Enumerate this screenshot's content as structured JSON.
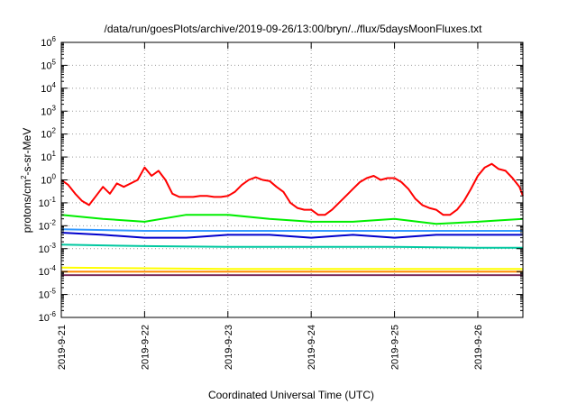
{
  "chart_data": {
    "type": "line",
    "title": "/data/run/goesPlots/archive/2019-09-26/13:00/bryn/../flux/5daysMoonFluxes.txt",
    "xlabel": "Coordinated Universal Time (UTC)",
    "ylabel": {
      "prefix": "protons/cm",
      "superscript": "2",
      "suffix": "-s-sr-MeV"
    },
    "y_scale": "log",
    "ylim": [
      1e-06,
      1000000.0
    ],
    "y_ticks": [
      {
        "value": 1e-06,
        "base": "10",
        "exp": "-6"
      },
      {
        "value": 1e-05,
        "base": "10",
        "exp": "-5"
      },
      {
        "value": 0.0001,
        "base": "10",
        "exp": "-4"
      },
      {
        "value": 0.001,
        "base": "10",
        "exp": "-3"
      },
      {
        "value": 0.01,
        "base": "10",
        "exp": "-2"
      },
      {
        "value": 0.1,
        "base": "10",
        "exp": "-1"
      },
      {
        "value": 1.0,
        "base": "10",
        "exp": "0"
      },
      {
        "value": 10.0,
        "base": "10",
        "exp": "1"
      },
      {
        "value": 100.0,
        "base": "10",
        "exp": "2"
      },
      {
        "value": 1000.0,
        "base": "10",
        "exp": "3"
      },
      {
        "value": 10000.0,
        "base": "10",
        "exp": "4"
      },
      {
        "value": 100000.0,
        "base": "10",
        "exp": "5"
      },
      {
        "value": 1000000.0,
        "base": "10",
        "exp": "6"
      }
    ],
    "x_ticks": [
      "2019-9-21",
      "2019-9-22",
      "2019-9-23",
      "2019-9-24",
      "2019-9-25",
      "2019-9-26"
    ],
    "xlim": [
      "2019-09-21T00:00",
      "2019-09-26T13:00"
    ],
    "grid": true,
    "legend": "none",
    "series": [
      {
        "color": "#ff0000",
        "x": [
          "2019-09-21T00:00",
          "2019-09-21T02:00",
          "2019-09-21T04:00",
          "2019-09-21T06:00",
          "2019-09-21T08:00",
          "2019-09-21T10:00",
          "2019-09-21T12:00",
          "2019-09-21T14:00",
          "2019-09-21T16:00",
          "2019-09-21T18:00",
          "2019-09-21T20:00",
          "2019-09-21T22:00",
          "2019-09-22T00:00",
          "2019-09-22T02:00",
          "2019-09-22T04:00",
          "2019-09-22T06:00",
          "2019-09-22T08:00",
          "2019-09-22T10:00",
          "2019-09-22T12:00",
          "2019-09-22T14:00",
          "2019-09-22T16:00",
          "2019-09-22T18:00",
          "2019-09-22T20:00",
          "2019-09-22T22:00",
          "2019-09-23T00:00",
          "2019-09-23T02:00",
          "2019-09-23T04:00",
          "2019-09-23T06:00",
          "2019-09-23T08:00",
          "2019-09-23T10:00",
          "2019-09-23T12:00",
          "2019-09-23T14:00",
          "2019-09-23T16:00",
          "2019-09-23T18:00",
          "2019-09-23T20:00",
          "2019-09-23T22:00",
          "2019-09-24T00:00",
          "2019-09-24T02:00",
          "2019-09-24T04:00",
          "2019-09-24T06:00",
          "2019-09-24T08:00",
          "2019-09-24T10:00",
          "2019-09-24T12:00",
          "2019-09-24T14:00",
          "2019-09-24T16:00",
          "2019-09-24T18:00",
          "2019-09-24T20:00",
          "2019-09-24T22:00",
          "2019-09-25T00:00",
          "2019-09-25T02:00",
          "2019-09-25T04:00",
          "2019-09-25T06:00",
          "2019-09-25T08:00",
          "2019-09-25T10:00",
          "2019-09-25T12:00",
          "2019-09-25T14:00",
          "2019-09-25T16:00",
          "2019-09-25T18:00",
          "2019-09-25T20:00",
          "2019-09-25T22:00",
          "2019-09-26T00:00",
          "2019-09-26T02:00",
          "2019-09-26T04:00",
          "2019-09-26T06:00",
          "2019-09-26T08:00",
          "2019-09-26T10:00",
          "2019-09-26T12:00",
          "2019-09-26T13:00"
        ],
        "values": [
          1.0,
          0.6,
          0.25,
          0.12,
          0.08,
          0.2,
          0.5,
          0.25,
          0.7,
          0.5,
          0.7,
          1.0,
          3.5,
          1.5,
          2.5,
          1.0,
          0.25,
          0.18,
          0.18,
          0.18,
          0.2,
          0.2,
          0.18,
          0.18,
          0.2,
          0.3,
          0.6,
          1.0,
          1.3,
          1.0,
          0.9,
          0.5,
          0.3,
          0.1,
          0.06,
          0.05,
          0.05,
          0.03,
          0.03,
          0.05,
          0.1,
          0.2,
          0.4,
          0.8,
          1.2,
          1.5,
          1.0,
          1.2,
          1.2,
          0.8,
          0.4,
          0.15,
          0.08,
          0.06,
          0.05,
          0.03,
          0.03,
          0.05,
          0.12,
          0.4,
          1.5,
          3.5,
          5.0,
          3.0,
          2.5,
          1.2,
          0.5,
          0.2
        ]
      },
      {
        "color": "#00ee00",
        "x": [
          "2019-09-21T00:00",
          "2019-09-21T12:00",
          "2019-09-22T00:00",
          "2019-09-22T12:00",
          "2019-09-23T00:00",
          "2019-09-23T12:00",
          "2019-09-24T00:00",
          "2019-09-24T12:00",
          "2019-09-25T00:00",
          "2019-09-25T12:00",
          "2019-09-26T00:00",
          "2019-09-26T13:00"
        ],
        "values": [
          0.03,
          0.02,
          0.015,
          0.03,
          0.03,
          0.02,
          0.015,
          0.015,
          0.02,
          0.012,
          0.015,
          0.02
        ]
      },
      {
        "color": "#0000cc",
        "x": [
          "2019-09-21T00:00",
          "2019-09-21T12:00",
          "2019-09-22T00:00",
          "2019-09-22T12:00",
          "2019-09-23T00:00",
          "2019-09-23T12:00",
          "2019-09-24T00:00",
          "2019-09-24T12:00",
          "2019-09-25T00:00",
          "2019-09-25T12:00",
          "2019-09-26T00:00",
          "2019-09-26T13:00"
        ],
        "values": [
          0.005,
          0.004,
          0.003,
          0.003,
          0.004,
          0.004,
          0.003,
          0.004,
          0.003,
          0.004,
          0.004,
          0.004
        ]
      },
      {
        "color": "#3399ff",
        "x": [
          "2019-09-21T00:00",
          "2019-09-22T00:00",
          "2019-09-23T00:00",
          "2019-09-24T00:00",
          "2019-09-25T00:00",
          "2019-09-26T00:00",
          "2019-09-26T13:00"
        ],
        "values": [
          0.007,
          0.006,
          0.006,
          0.006,
          0.006,
          0.006,
          0.006
        ]
      },
      {
        "color": "#00c8a0",
        "x": [
          "2019-09-21T00:00",
          "2019-09-22T00:00",
          "2019-09-23T00:00",
          "2019-09-24T00:00",
          "2019-09-25T00:00",
          "2019-09-26T00:00",
          "2019-09-26T13:00"
        ],
        "values": [
          0.0015,
          0.0013,
          0.0012,
          0.0012,
          0.0012,
          0.0011,
          0.0011
        ]
      },
      {
        "color": "#ffff00",
        "x": [
          "2019-09-21T00:00",
          "2019-09-22T00:00",
          "2019-09-23T00:00",
          "2019-09-24T00:00",
          "2019-09-25T00:00",
          "2019-09-26T00:00",
          "2019-09-26T13:00"
        ],
        "values": [
          0.00015,
          0.00014,
          0.00013,
          0.00013,
          0.00013,
          0.00013,
          0.00013
        ]
      },
      {
        "color": "#ff8c00",
        "x": [
          "2019-09-21T00:00",
          "2019-09-22T00:00",
          "2019-09-23T00:00",
          "2019-09-24T00:00",
          "2019-09-25T00:00",
          "2019-09-26T00:00",
          "2019-09-26T13:00"
        ],
        "values": [
          0.0001,
          0.0001,
          0.0001,
          0.0001,
          0.0001,
          0.0001,
          0.0001
        ]
      },
      {
        "color": "#7b2d5c",
        "x": [
          "2019-09-21T00:00",
          "2019-09-22T00:00",
          "2019-09-23T00:00",
          "2019-09-24T00:00",
          "2019-09-25T00:00",
          "2019-09-26T00:00",
          "2019-09-26T13:00"
        ],
        "values": [
          7e-05,
          7e-05,
          7e-05,
          7e-05,
          7e-05,
          7e-05,
          7e-05
        ]
      }
    ]
  }
}
